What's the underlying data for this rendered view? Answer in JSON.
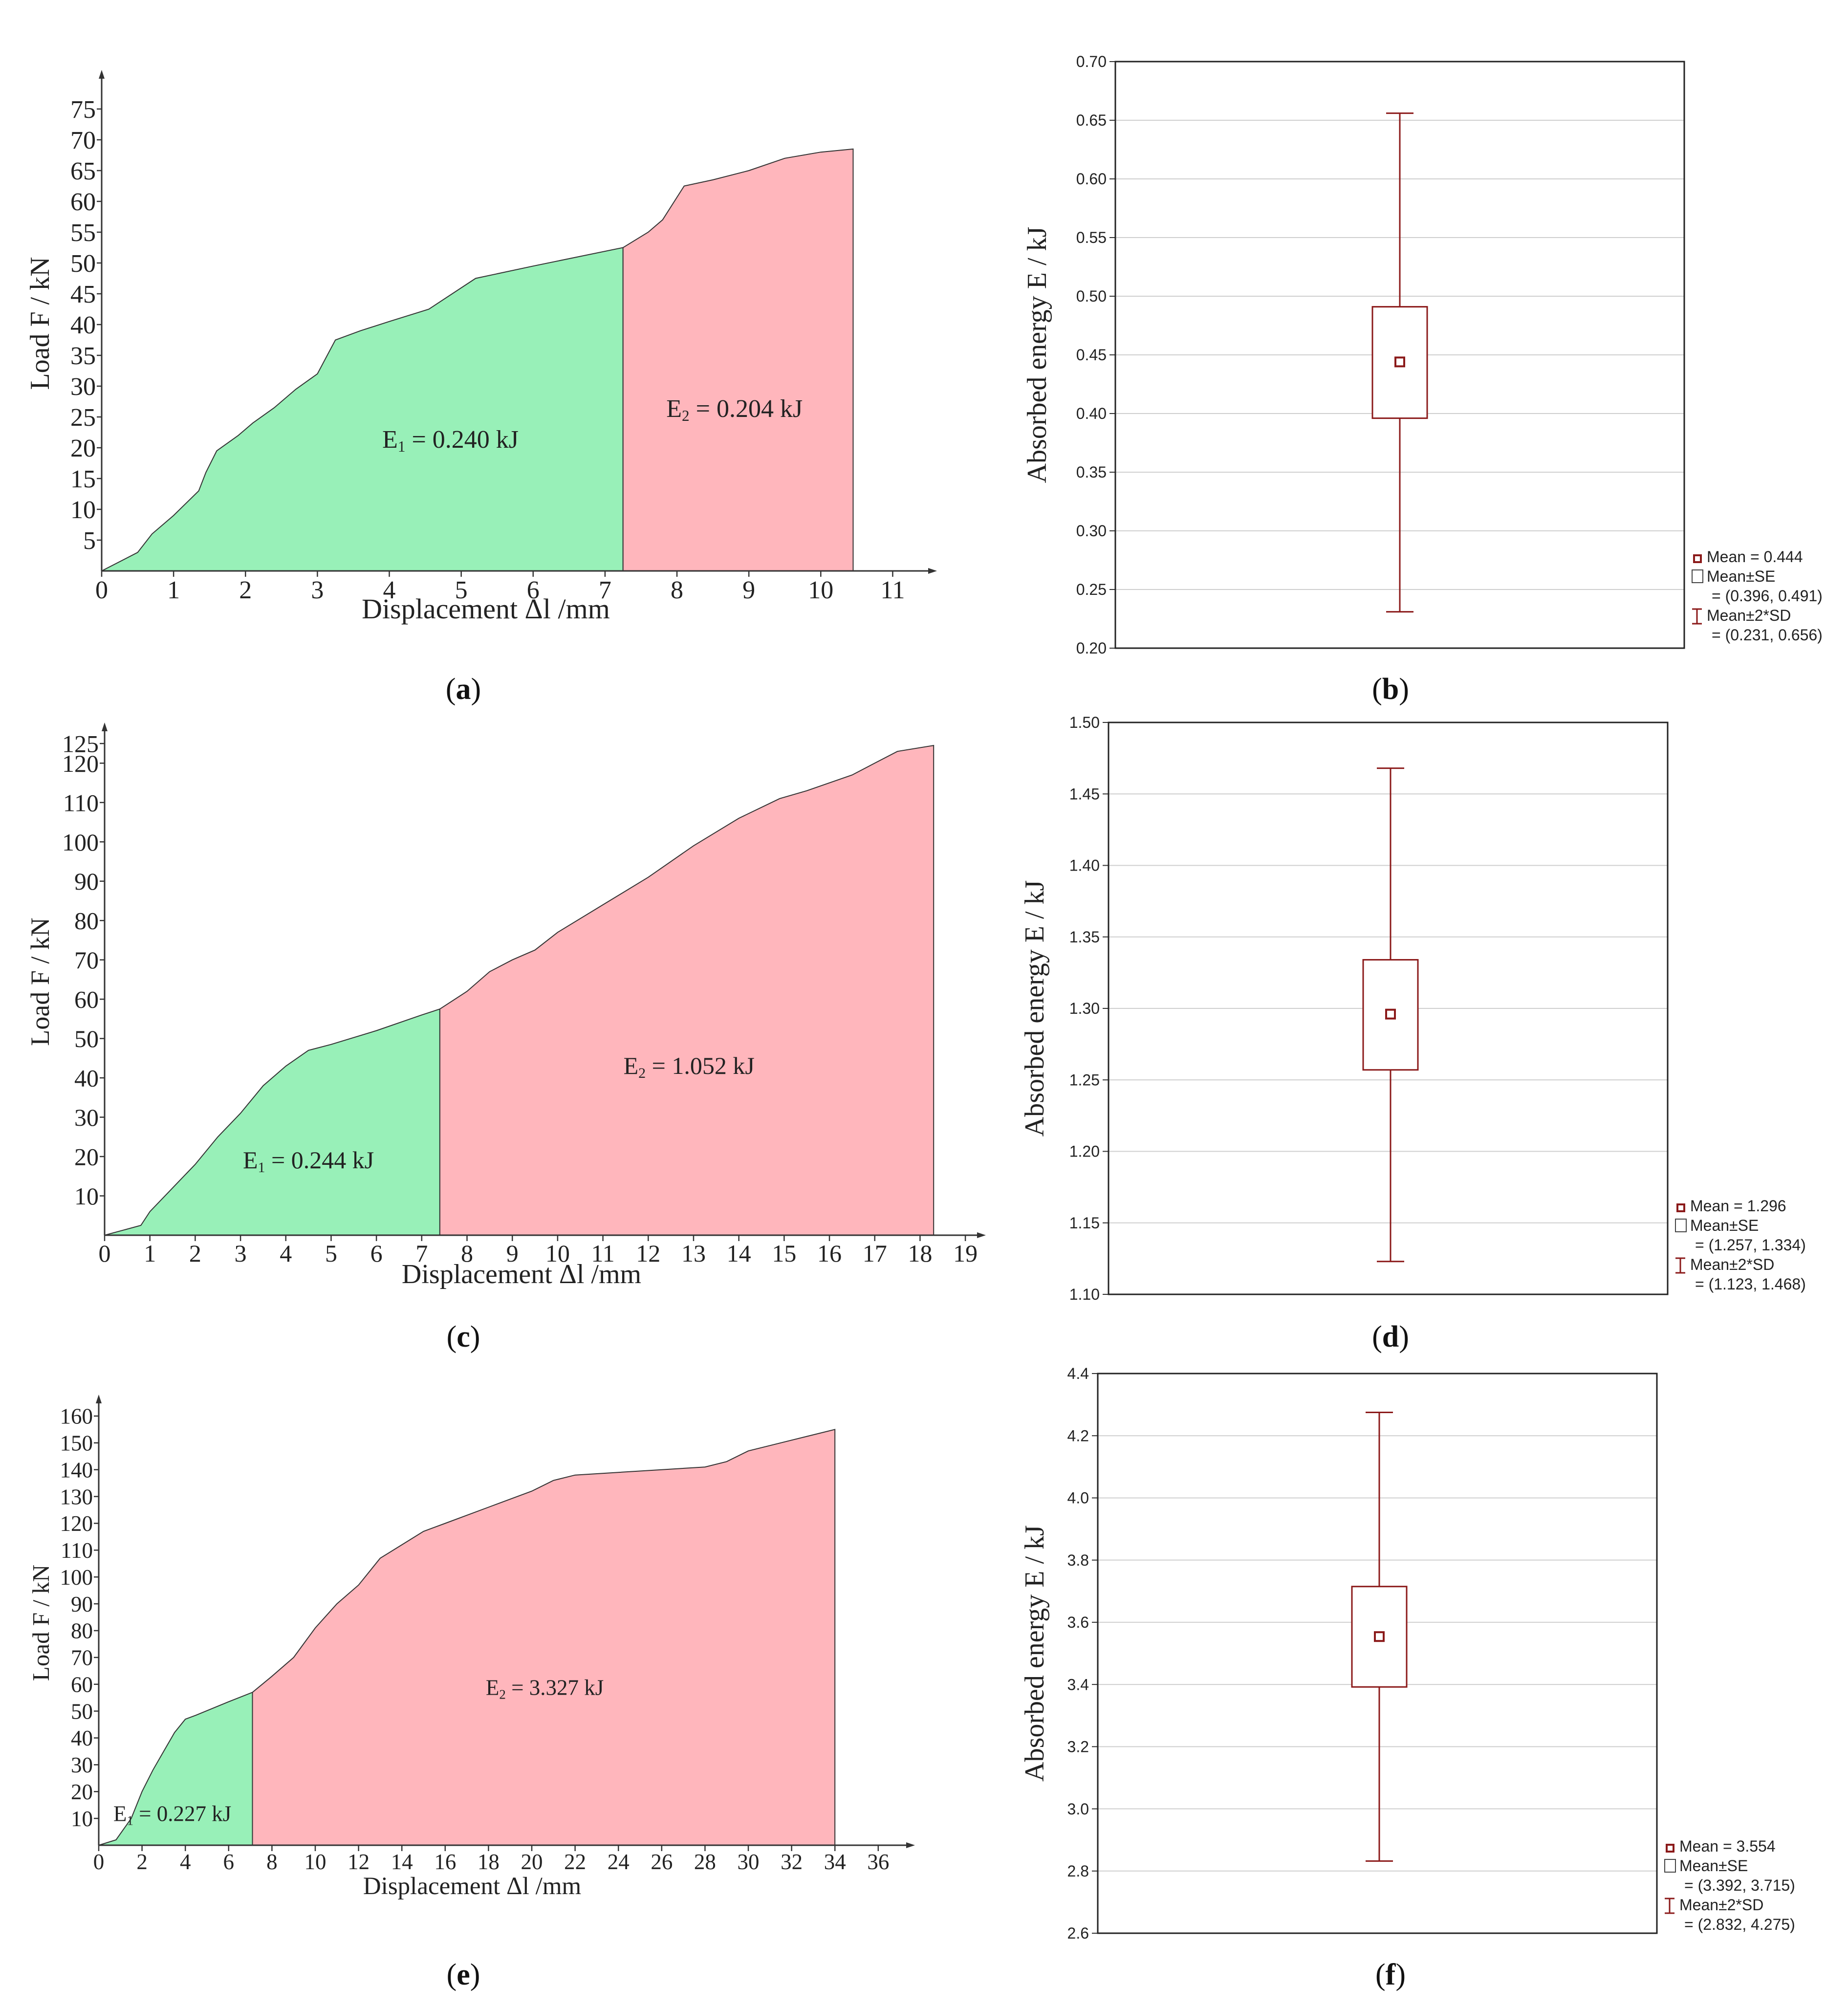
{
  "figure": {
    "panels": [
      {
        "id": "a",
        "label": "a"
      },
      {
        "id": "b",
        "label": "b"
      },
      {
        "id": "c",
        "label": "c"
      },
      {
        "id": "d",
        "label": "d"
      },
      {
        "id": "e",
        "label": "e"
      },
      {
        "id": "f",
        "label": "f"
      }
    ]
  },
  "colors": {
    "e1_fill": "#98f0b8",
    "e2_fill": "#ffb6bc",
    "box": "#8b1a1a",
    "grid": "#cfcfcf"
  },
  "chart_data": [
    {
      "id": "a",
      "type": "area",
      "xlabel": "Displacement Δl /mm",
      "ylabel": "Load F / kN",
      "xlim": [
        0,
        11.5
      ],
      "ylim": [
        0,
        80
      ],
      "xticks": [
        0,
        1,
        2,
        3,
        4,
        5,
        6,
        7,
        8,
        9,
        10,
        11
      ],
      "yticks": [
        5,
        10,
        15,
        20,
        25,
        30,
        35,
        40,
        45,
        50,
        55,
        60,
        65,
        70,
        75
      ],
      "show_zero_y": false,
      "split_x": 7.25,
      "curve": [
        [
          0,
          0
        ],
        [
          0.5,
          3
        ],
        [
          0.7,
          6
        ],
        [
          1.0,
          9
        ],
        [
          1.35,
          13
        ],
        [
          1.45,
          16
        ],
        [
          1.6,
          19.5
        ],
        [
          1.9,
          22
        ],
        [
          2.1,
          24
        ],
        [
          2.4,
          26.5
        ],
        [
          2.7,
          29.5
        ],
        [
          3.0,
          32
        ],
        [
          3.25,
          37.5
        ],
        [
          3.6,
          39
        ],
        [
          4.0,
          40.5
        ],
        [
          4.55,
          42.5
        ],
        [
          5.2,
          47.5
        ],
        [
          6.0,
          49.5
        ],
        [
          7.25,
          52.5
        ],
        [
          7.6,
          55
        ],
        [
          7.8,
          57
        ],
        [
          8.1,
          62.5
        ],
        [
          8.5,
          63.5
        ],
        [
          9.0,
          65
        ],
        [
          9.5,
          67
        ],
        [
          10.0,
          68
        ],
        [
          10.45,
          68.5
        ]
      ],
      "region_labels": [
        {
          "name": "E1",
          "text": "E",
          "sub": "1",
          "value": " = 0.240 kJ",
          "x": 4.85,
          "y": 20
        },
        {
          "name": "E2",
          "text": "E",
          "sub": "2",
          "value": " = 0.204 kJ",
          "x": 8.8,
          "y": 25
        }
      ]
    },
    {
      "id": "b",
      "type": "box",
      "ylabel": "Absorbed energy E / kJ",
      "ylim": [
        0.2,
        0.7
      ],
      "yticks": [
        "0.20",
        "0.25",
        "0.30",
        "0.35",
        "0.40",
        "0.45",
        "0.50",
        "0.55",
        "0.60",
        "0.65",
        "0.70"
      ],
      "mean": 0.444,
      "se_low": 0.396,
      "se_high": 0.491,
      "sd_low": 0.231,
      "sd_high": 0.656,
      "legend": [
        "Mean = 0.444",
        "Mean±SE",
        "= (0.396, 0.491)",
        "Mean±2*SD",
        "= (0.231, 0.656)"
      ]
    },
    {
      "id": "c",
      "type": "area",
      "xlabel": "Displacement Δl /mm",
      "ylabel": "Load F / kN",
      "xlim": [
        0,
        19.7
      ],
      "ylim": [
        0,
        127
      ],
      "xticks": [
        0,
        1,
        2,
        3,
        4,
        5,
        6,
        7,
        8,
        9,
        10,
        11,
        12,
        13,
        14,
        15,
        16,
        17,
        18,
        19
      ],
      "yticks": [
        10,
        20,
        30,
        40,
        50,
        60,
        70,
        80,
        90,
        100,
        110,
        120,
        125
      ],
      "show_zero_y": false,
      "split_x": 7.4,
      "curve": [
        [
          0,
          0
        ],
        [
          0.8,
          2.5
        ],
        [
          1.0,
          6
        ],
        [
          1.5,
          12
        ],
        [
          2.0,
          18
        ],
        [
          2.5,
          25
        ],
        [
          3.0,
          31
        ],
        [
          3.5,
          38
        ],
        [
          4.0,
          43
        ],
        [
          4.5,
          47
        ],
        [
          5.0,
          48.5
        ],
        [
          6.0,
          52
        ],
        [
          7.0,
          56
        ],
        [
          7.4,
          57.5
        ],
        [
          8.0,
          62
        ],
        [
          8.5,
          67
        ],
        [
          9.0,
          70
        ],
        [
          9.5,
          72.5
        ],
        [
          10.0,
          77
        ],
        [
          11.0,
          84
        ],
        [
          12.0,
          91
        ],
        [
          13.0,
          99
        ],
        [
          14.0,
          106
        ],
        [
          14.9,
          111
        ],
        [
          15.5,
          113
        ],
        [
          16.0,
          115
        ],
        [
          16.5,
          117
        ],
        [
          17.0,
          120
        ],
        [
          17.5,
          123
        ],
        [
          18.3,
          124.5
        ]
      ],
      "region_labels": [
        {
          "name": "E1",
          "text": "E",
          "sub": "1",
          "value": " = 0.244 kJ",
          "x": 4.5,
          "y": 17
        },
        {
          "name": "E2",
          "text": "E",
          "sub": "2",
          "value": " = 1.052 kJ",
          "x": 12.9,
          "y": 41
        }
      ]
    },
    {
      "id": "d",
      "type": "box",
      "ylabel": "Absorbed energy E / kJ",
      "ylim": [
        1.1,
        1.5
      ],
      "yticks": [
        "1.10",
        "1.15",
        "1.20",
        "1.25",
        "1.30",
        "1.35",
        "1.40",
        "1.45",
        "1.50"
      ],
      "mean": 1.296,
      "se_low": 1.257,
      "se_high": 1.334,
      "sd_low": 1.123,
      "sd_high": 1.468,
      "legend": [
        "Mean = 1.296",
        "Mean±SE",
        "= (1.257, 1.334)",
        "Mean±2*SD",
        "= (1.123, 1.468)"
      ]
    },
    {
      "id": "e",
      "type": "area",
      "xlabel": "Displacement Δl /mm",
      "ylabel": "Load F / kN",
      "xlim": [
        0,
        37.2
      ],
      "ylim": [
        0,
        164
      ],
      "xticks": [
        0,
        2,
        4,
        6,
        8,
        10,
        12,
        14,
        16,
        18,
        20,
        22,
        24,
        26,
        28,
        30,
        32,
        34,
        36
      ],
      "yticks": [
        10,
        20,
        30,
        40,
        50,
        60,
        70,
        80,
        90,
        100,
        110,
        120,
        130,
        140,
        150,
        160
      ],
      "show_zero_y": false,
      "split_x": 7.1,
      "curve": [
        [
          0,
          0
        ],
        [
          0.8,
          2
        ],
        [
          1.5,
          10
        ],
        [
          2.0,
          20
        ],
        [
          2.5,
          28
        ],
        [
          3.0,
          35
        ],
        [
          3.5,
          42
        ],
        [
          4.0,
          47
        ],
        [
          4.5,
          48.5
        ],
        [
          6.0,
          53.5
        ],
        [
          7.1,
          57
        ],
        [
          8.0,
          63
        ],
        [
          9.0,
          70
        ],
        [
          10.0,
          81
        ],
        [
          11.0,
          90
        ],
        [
          12.0,
          97
        ],
        [
          13.0,
          107
        ],
        [
          14.0,
          112
        ],
        [
          15.0,
          117
        ],
        [
          16.0,
          120
        ],
        [
          18.0,
          126
        ],
        [
          20.0,
          132
        ],
        [
          21.0,
          136
        ],
        [
          22.0,
          138
        ],
        [
          24.0,
          139
        ],
        [
          26.0,
          140
        ],
        [
          28.0,
          141
        ],
        [
          29.0,
          143
        ],
        [
          30.0,
          147
        ],
        [
          31.0,
          149
        ],
        [
          32.0,
          151
        ],
        [
          34.0,
          155
        ]
      ],
      "region_labels": [
        {
          "name": "E1",
          "text": "E",
          "sub": "1",
          "value": " = 0.227 kJ",
          "x": 3.4,
          "y": 9
        },
        {
          "name": "E2",
          "text": "E",
          "sub": "2",
          "value": " = 3.327 kJ",
          "x": 20.6,
          "y": 56
        }
      ]
    },
    {
      "id": "f",
      "type": "box",
      "ylabel": "Absorbed energy E / kJ",
      "ylim": [
        2.6,
        4.4
      ],
      "yticks": [
        "2.6",
        "2.8",
        "3.0",
        "3.2",
        "3.4",
        "3.6",
        "3.8",
        "4.0",
        "4.2",
        "4.4"
      ],
      "mean": 3.554,
      "se_low": 3.392,
      "se_high": 3.715,
      "sd_low": 2.832,
      "sd_high": 4.275,
      "legend": [
        "Mean = 3.554",
        "Mean±SE",
        "= (3.392, 3.715)",
        "Mean±2*SD",
        "= (2.832, 4.275)"
      ]
    }
  ]
}
